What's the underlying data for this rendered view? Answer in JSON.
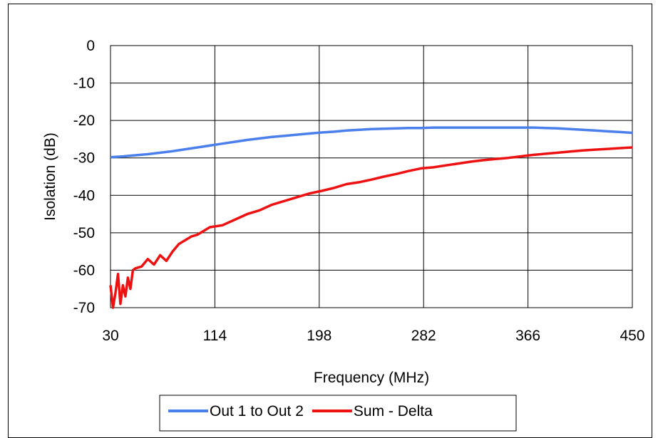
{
  "chart_data": {
    "type": "line",
    "title": "",
    "xlabel": "Frequency (MHz)",
    "ylabel": "Isolation (dB)",
    "xlim": [
      30,
      450
    ],
    "ylim": [
      -70,
      0
    ],
    "xticks": [
      30,
      114,
      198,
      282,
      366,
      450
    ],
    "yticks": [
      0,
      -10,
      -20,
      -30,
      -40,
      -50,
      -60,
      -70
    ],
    "grid": true,
    "legend_position": "bottom",
    "series": [
      {
        "name": "Out 1 to Out 2",
        "color": "#4a7fec",
        "x": [
          30,
          40,
          50,
          60,
          70,
          80,
          90,
          100,
          110,
          120,
          130,
          140,
          150,
          160,
          170,
          180,
          190,
          200,
          210,
          220,
          230,
          240,
          250,
          260,
          270,
          280,
          290,
          300,
          310,
          320,
          330,
          340,
          350,
          360,
          370,
          380,
          390,
          400,
          410,
          420,
          430,
          440,
          450
        ],
        "y": [
          -29.8,
          -29.6,
          -29.3,
          -29.0,
          -28.6,
          -28.2,
          -27.7,
          -27.2,
          -26.7,
          -26.2,
          -25.7,
          -25.2,
          -24.8,
          -24.4,
          -24.1,
          -23.8,
          -23.5,
          -23.2,
          -23.0,
          -22.7,
          -22.5,
          -22.3,
          -22.2,
          -22.1,
          -22.0,
          -22.0,
          -21.9,
          -21.9,
          -21.9,
          -21.9,
          -21.9,
          -21.9,
          -21.9,
          -21.9,
          -21.9,
          -22.0,
          -22.1,
          -22.3,
          -22.5,
          -22.7,
          -22.9,
          -23.1,
          -23.3
        ]
      },
      {
        "name": "Sum - Delta",
        "color": "#ee1111",
        "x": [
          30,
          32,
          34,
          36,
          38,
          40,
          42,
          44,
          46,
          48,
          50,
          55,
          60,
          65,
          70,
          75,
          80,
          85,
          90,
          95,
          100,
          110,
          120,
          130,
          140,
          150,
          160,
          170,
          180,
          190,
          200,
          210,
          220,
          230,
          240,
          250,
          260,
          270,
          280,
          290,
          300,
          310,
          320,
          330,
          340,
          350,
          360,
          370,
          380,
          390,
          400,
          410,
          420,
          430,
          440,
          450
        ],
        "y": [
          -64,
          -70,
          -66,
          -61,
          -69,
          -64,
          -67,
          -62,
          -65,
          -60,
          -59.5,
          -59,
          -57,
          -58.5,
          -56,
          -57.5,
          -55,
          -53,
          -52,
          -51,
          -50.5,
          -48.5,
          -48,
          -46.5,
          -45,
          -44,
          -42.5,
          -41.5,
          -40.5,
          -39.5,
          -38.8,
          -38,
          -37,
          -36.5,
          -35.8,
          -35,
          -34.3,
          -33.5,
          -32.8,
          -32.5,
          -32,
          -31.5,
          -31,
          -30.6,
          -30.3,
          -30,
          -29.6,
          -29.2,
          -28.9,
          -28.6,
          -28.3,
          -28,
          -27.8,
          -27.6,
          -27.4,
          -27.2
        ]
      }
    ]
  }
}
